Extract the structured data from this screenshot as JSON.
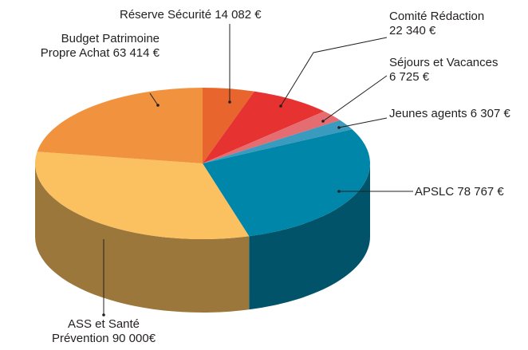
{
  "chart_data": {
    "type": "pie",
    "categories": [
      "Réserve Sécurité",
      "Comité Rédaction",
      "Séjours et Vacances",
      "Jeunes agents",
      "APSLC",
      "ASS et Santé Prévention",
      "Budget Patrimoine Propre Achat"
    ],
    "values": [
      14082,
      22340,
      6725,
      6307,
      78767,
      90000,
      63414
    ],
    "value_labels": [
      "14 082 €",
      "22 340 €",
      "6 725 €",
      "6 307 €",
      "78 767 €",
      "90 000€",
      "63 414 €"
    ],
    "colors": [
      "#e8662e",
      "#e63331",
      "#e56d72",
      "#3a9bbf",
      "#0086a8",
      "#fbc060",
      "#f0923e"
    ]
  }
}
